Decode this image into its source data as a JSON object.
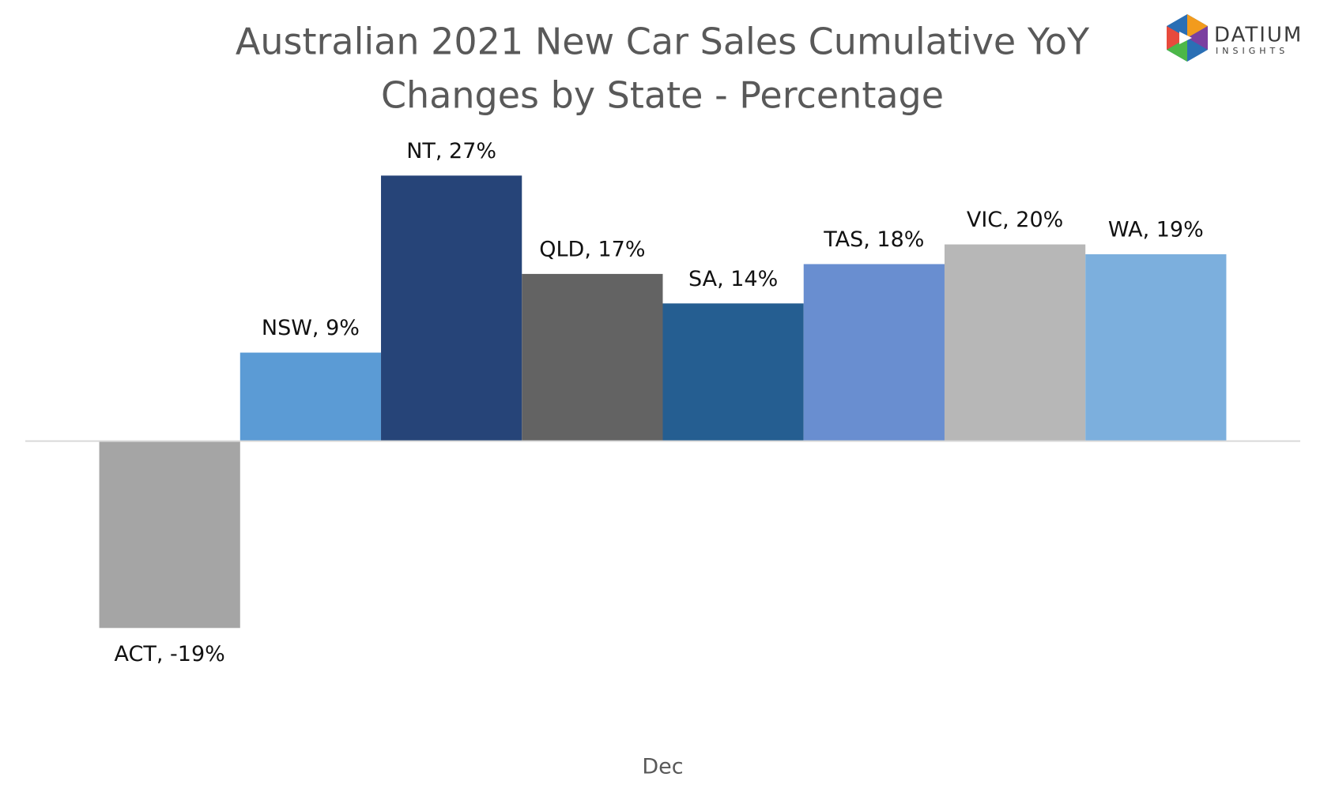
{
  "chart_data": {
    "type": "bar",
    "title": [
      "Australian 2021 New Car Sales Cumulative YoY",
      "Changes by State - Percentage"
    ],
    "logo": {
      "name": "DATIUM",
      "tagline": "INSIGHTS"
    },
    "categories": [
      "Dec"
    ],
    "series": [
      {
        "name": "ACT",
        "color": "#a5a5a5",
        "values": [
          -19
        ],
        "value_labels": [
          "ACT, -19%"
        ]
      },
      {
        "name": "NSW",
        "color": "#5b9bd5",
        "values": [
          9
        ],
        "value_labels": [
          "NSW, 9%"
        ]
      },
      {
        "name": "NT",
        "color": "#264478",
        "values": [
          27
        ],
        "value_labels": [
          "NT, 27%"
        ]
      },
      {
        "name": "QLD",
        "color": "#636363",
        "values": [
          17
        ],
        "value_labels": [
          "QLD, 17%"
        ]
      },
      {
        "name": "SA",
        "color": "#255e91",
        "values": [
          14
        ],
        "value_labels": [
          "SA, 14%"
        ]
      },
      {
        "name": "TAS",
        "color": "#698ed0",
        "values": [
          18
        ],
        "value_labels": [
          "TAS, 18%"
        ]
      },
      {
        "name": "VIC",
        "color": "#b7b7b7",
        "values": [
          20
        ],
        "value_labels": [
          "VIC, 20%"
        ]
      },
      {
        "name": "WA",
        "color": "#7cafdd",
        "values": [
          19
        ],
        "value_labels": [
          "WA, 19%"
        ]
      }
    ],
    "ylim": [
      -25,
      30
    ]
  }
}
